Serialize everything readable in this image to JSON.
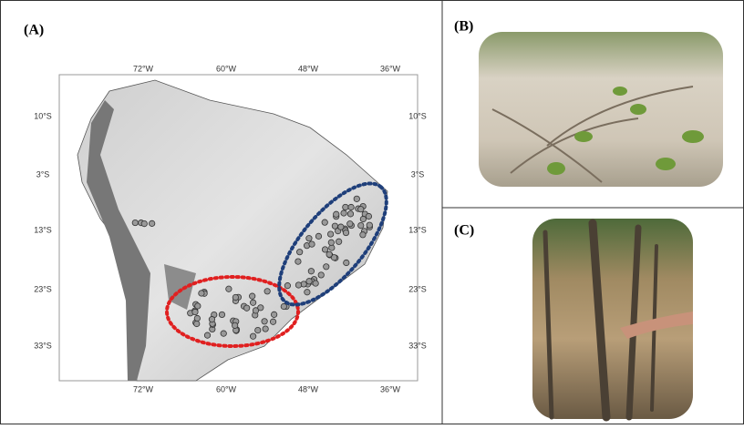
{
  "panel_a": {
    "label": "(A)",
    "lon_top": [
      "72°W",
      "60°W",
      "48°W",
      "36°W"
    ],
    "lon_bottom": [
      "72°W",
      "60°W",
      "48°W",
      "36°W"
    ],
    "lat_left": [
      "10°S",
      "3°S",
      "13°S",
      "23°S",
      "33°S"
    ],
    "lat_right": [
      "10°S",
      "3°S",
      "13°S",
      "23°S",
      "33°S"
    ]
  },
  "panel_b": {
    "label": "(B)"
  },
  "panel_c": {
    "label": "(C)"
  }
}
